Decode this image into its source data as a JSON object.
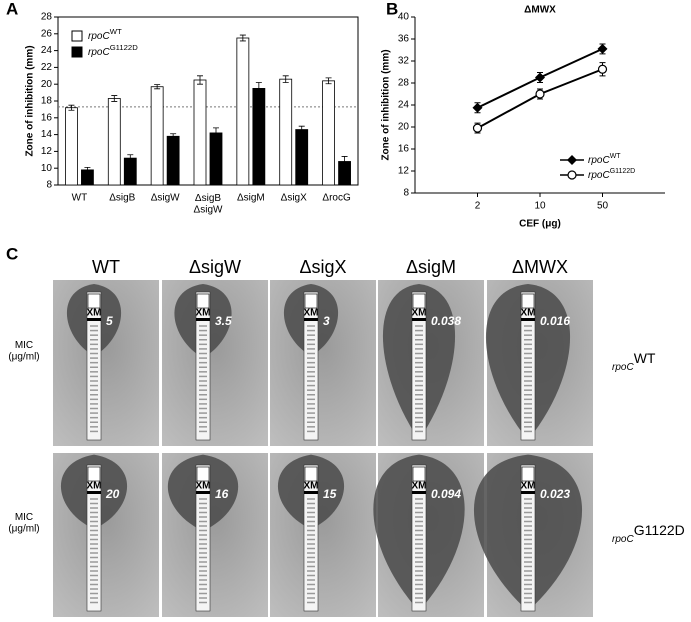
{
  "panel_labels": [
    "A",
    "B",
    "C"
  ],
  "chart_data": [
    {
      "type": "bar",
      "ylabel": "Zone of inhibition (mm)",
      "categories": [
        "WT",
        "ΔsigB",
        "ΔsigW",
        "ΔsigB\nΔsigW",
        "ΔsigM",
        "ΔsigX",
        "ΔrocG"
      ],
      "series": [
        {
          "name_main": "rpoC",
          "name_sup": "WT",
          "color": "#ffffff",
          "values": [
            17.2,
            18.3,
            19.7,
            20.5,
            25.5,
            20.6,
            20.4
          ],
          "errors": [
            0.3,
            0.35,
            0.25,
            0.5,
            0.35,
            0.4,
            0.35
          ]
        },
        {
          "name_main": "rpoC",
          "name_sup": "G1122D",
          "color": "#000000",
          "values": [
            9.8,
            11.2,
            13.8,
            14.2,
            19.5,
            14.6,
            10.8
          ],
          "errors": [
            0.3,
            0.4,
            0.3,
            0.6,
            0.7,
            0.4,
            0.6
          ]
        }
      ],
      "reference_line": 17.3,
      "ylim": [
        8,
        28
      ],
      "yticks": [
        8,
        10,
        12,
        14,
        16,
        18,
        20,
        22,
        24,
        26,
        28
      ]
    },
    {
      "type": "line",
      "title": "ΔMWX",
      "xlabel": "CEF (μg)",
      "ylabel": "Zone of inhibition (mm)",
      "categories": [
        "2",
        "10",
        "50"
      ],
      "series": [
        {
          "name_main": "rpoC",
          "name_sup": "WT",
          "color": "#000000",
          "marker": "diamond",
          "values": [
            23.5,
            29.0,
            34.2
          ],
          "errors": [
            0.9,
            0.9,
            0.9
          ]
        },
        {
          "name_main": "rpoC",
          "name_sup": "G1122D",
          "color": "#000000",
          "marker": "circle",
          "values": [
            19.8,
            26.0,
            30.5
          ],
          "errors": [
            0.9,
            0.9,
            1.2
          ]
        }
      ],
      "ylim": [
        8,
        40
      ],
      "yticks": [
        8,
        12,
        16,
        20,
        24,
        28,
        32,
        36,
        40
      ]
    }
  ],
  "panel_c": {
    "columns": [
      "WT",
      "ΔsigW",
      "ΔsigX",
      "ΔsigM",
      "ΔMWX"
    ],
    "mic_label": "MIC\n(μg/ml)",
    "strip_label": "XM",
    "rows": [
      {
        "genotype_main": "rpoC",
        "genotype_sup": "WT",
        "mic": [
          "5",
          "3.5",
          "3",
          "0.038",
          "0.016"
        ]
      },
      {
        "genotype_main": "rpoC",
        "genotype_sup": "G1122D",
        "mic": [
          "20",
          "16",
          "15",
          "0.094",
          "0.023"
        ]
      }
    ]
  }
}
